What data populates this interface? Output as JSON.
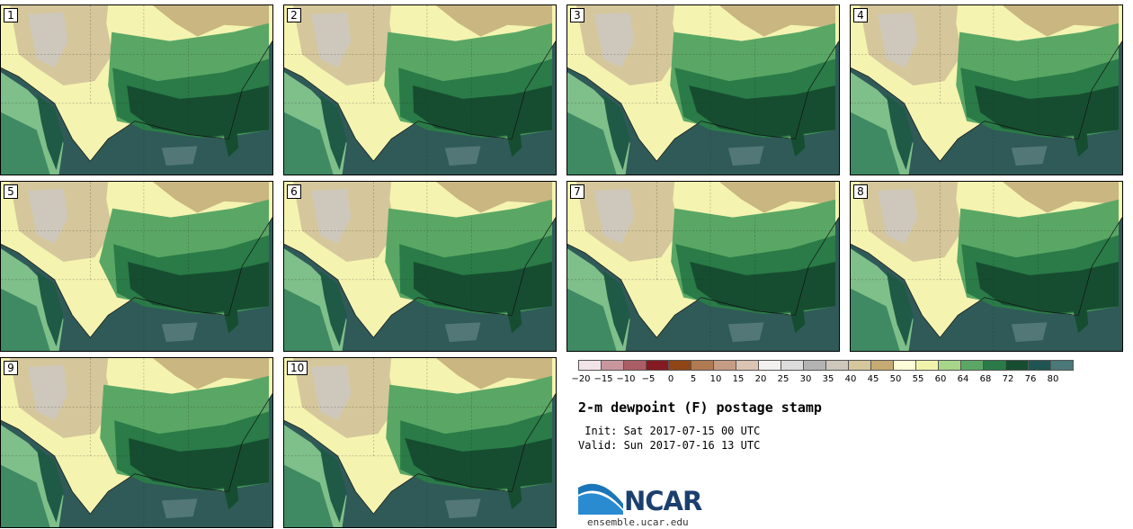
{
  "panels": [
    {
      "label": "1"
    },
    {
      "label": "2"
    },
    {
      "label": "3"
    },
    {
      "label": "4"
    },
    {
      "label": "5"
    },
    {
      "label": "6"
    },
    {
      "label": "7"
    },
    {
      "label": "8"
    },
    {
      "label": "9"
    },
    {
      "label": "10"
    }
  ],
  "colorbar": {
    "colors": [
      "#f1e3e8",
      "#c9969e",
      "#ad5d66",
      "#861a22",
      "#8f4516",
      "#b07a52",
      "#c59d84",
      "#dcc4b3",
      "#f2f1f0",
      "#dcdcdc",
      "#b3b3b3",
      "#cdc8bb",
      "#d5c79b",
      "#c5ab71",
      "#fdfdd8",
      "#f2f3ab",
      "#a7d58a",
      "#5aa765",
      "#2a7b47",
      "#164d30",
      "#1f5553",
      "#4b7878"
    ],
    "labels": [
      "−20",
      "−15",
      "−10",
      "−5",
      "0",
      "5",
      "10",
      "15",
      "20",
      "25",
      "30",
      "35",
      "40",
      "45",
      "50",
      "55",
      "60",
      "64",
      "68",
      "72",
      "76",
      "80"
    ]
  },
  "title": "2-m dewpoint (F) postage stamp",
  "init": " Init: Sat 2017-07-15 00 UTC",
  "valid": "Valid: Sun 2017-07-16 13 UTC",
  "logo": {
    "text": "NCAR",
    "colors": {
      "arc": "#1a76b8",
      "text": "#1b3f6e"
    }
  },
  "website": "ensemble.ucar.edu"
}
